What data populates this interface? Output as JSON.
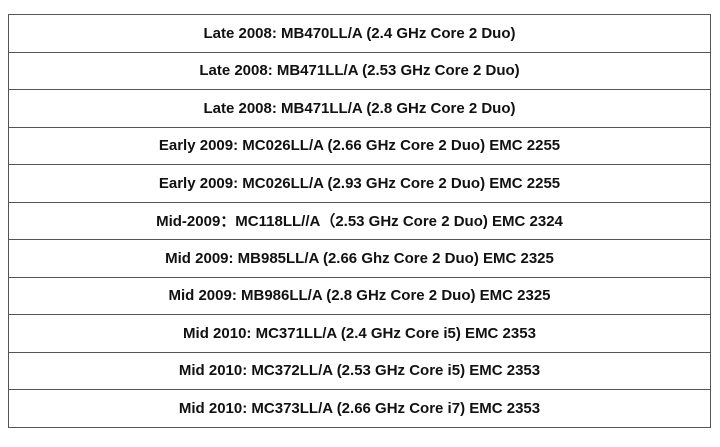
{
  "table": {
    "rows": [
      [
        "Late 2008: MB470LL/A (2.4 GHz Core 2 Duo)"
      ],
      [
        "Late 2008: MB471LL/A (2.53 GHz Core 2 Duo)"
      ],
      [
        "Late 2008: MB471LL/A (2.8 GHz Core 2 Duo)"
      ],
      [
        "Early 2009: MC026LL/A (2.66 GHz Core 2 Duo) EMC 2255"
      ],
      [
        "Early 2009: MC026LL/A (2.93 GHz Core 2 Duo) EMC 2255"
      ],
      [
        "Mid-2009：MC118LL//A（2.53 GHz Core 2 Duo) EMC 2324"
      ],
      [
        "Mid 2009: MB985LL/A (2.66 Ghz Core 2 Duo) EMC 2325"
      ],
      [
        "Mid 2009: MB986LL/A (2.8 GHz Core 2 Duo) EMC 2325"
      ],
      [
        "Mid 2010: MC371LL/A (2.4 GHz Core i5) EMC 2353"
      ],
      [
        "Mid 2010: MC372LL/A (2.53 GHz Core i5) EMC 2353"
      ],
      [
        "Mid 2010: MC373LL/A (2.66 GHz Core i7) EMC 2353"
      ]
    ]
  }
}
